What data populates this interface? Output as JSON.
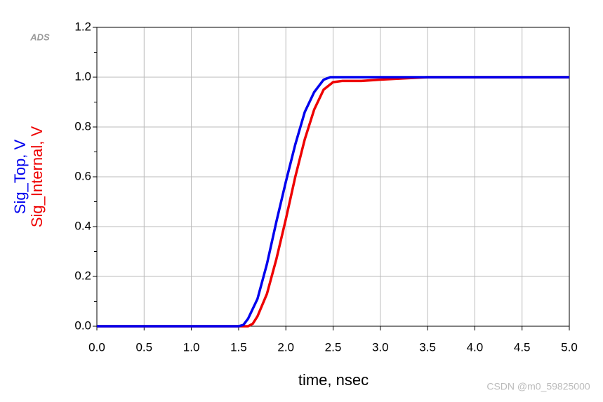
{
  "chart_data": {
    "type": "line",
    "logo": "ADS",
    "watermark": "CSDN @m0_59825000",
    "xlabel": "time, nsec",
    "xlim": [
      0,
      5
    ],
    "ylim": [
      0,
      1.2
    ],
    "xticks": [
      {
        "value": 0,
        "label": "0.0"
      },
      0.5,
      {
        "value": 1,
        "label": "1.0"
      },
      1.5,
      {
        "value": 2,
        "label": "2.0"
      },
      2.5,
      {
        "value": 3,
        "label": "3.0"
      },
      3.5,
      {
        "value": 4,
        "label": "4.0"
      },
      4.5,
      {
        "value": 5,
        "label": "5.0"
      }
    ],
    "yticks": [
      {
        "value": 0,
        "label": "0.0"
      },
      0.2,
      0.4,
      0.6,
      0.8,
      {
        "value": 1,
        "label": "1.0"
      },
      1.2
    ],
    "yminorticks": [
      0.1,
      0.3,
      0.5,
      0.7,
      0.9,
      1.1
    ],
    "grid": true,
    "series": [
      {
        "name": "Sig_Top, V",
        "color": "#0000ee",
        "x": [
          0,
          1.5,
          1.55,
          1.6,
          1.7,
          1.8,
          1.9,
          2.0,
          2.1,
          2.2,
          2.3,
          2.4,
          2.47,
          5.0
        ],
        "values": [
          0,
          0,
          0.005,
          0.03,
          0.11,
          0.25,
          0.42,
          0.58,
          0.73,
          0.86,
          0.94,
          0.99,
          1.0,
          1.0
        ]
      },
      {
        "name": "Sig_Internal, V",
        "color": "#ee0000",
        "x": [
          0,
          1.6,
          1.65,
          1.7,
          1.8,
          1.9,
          2.0,
          2.1,
          2.2,
          2.3,
          2.4,
          2.5,
          2.6,
          2.8,
          3.0,
          3.5,
          5.0
        ],
        "values": [
          0,
          0,
          0.01,
          0.04,
          0.13,
          0.27,
          0.43,
          0.6,
          0.75,
          0.87,
          0.95,
          0.98,
          0.985,
          0.985,
          0.99,
          1.0,
          1.0
        ]
      }
    ]
  }
}
